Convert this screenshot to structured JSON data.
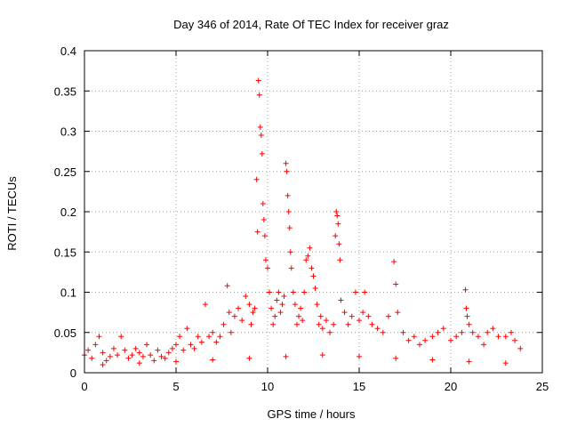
{
  "chart_data": {
    "type": "scatter",
    "title": "Day 346 of 2014, Rate Of TEC Index for receiver graz",
    "xlabel": "GPS time / hours",
    "ylabel": "ROTI / TECUs",
    "xlim": [
      0,
      25
    ],
    "ylim": [
      0,
      0.4
    ],
    "x_ticks": [
      0,
      5,
      10,
      15,
      20,
      25
    ],
    "x_tick_labels": [
      "0",
      "5",
      "10",
      "15",
      "20",
      "25"
    ],
    "y_ticks": [
      0,
      0.05,
      0.1,
      0.15,
      0.2,
      0.25,
      0.3,
      0.35,
      0.4
    ],
    "y_tick_labels": [
      "0",
      "0.05",
      "0.1",
      "0.15",
      "0.2",
      "0.25",
      "0.3",
      "0.35",
      "0.4"
    ],
    "grid": true,
    "marker": "+",
    "color": "#ff0000",
    "series": [
      {
        "name": "ROTI",
        "points": [
          [
            0.0,
            0.022
          ],
          [
            0.2,
            0.028
          ],
          [
            0.4,
            0.018
          ],
          [
            0.6,
            0.035
          ],
          [
            0.8,
            0.045
          ],
          [
            1.0,
            0.025
          ],
          [
            1.2,
            0.015
          ],
          [
            1.4,
            0.02
          ],
          [
            1.6,
            0.03
          ],
          [
            1.8,
            0.022
          ],
          [
            2.0,
            0.045
          ],
          [
            2.2,
            0.028
          ],
          [
            2.4,
            0.018
          ],
          [
            2.6,
            0.022
          ],
          [
            2.8,
            0.03
          ],
          [
            3.0,
            0.025
          ],
          [
            3.2,
            0.02
          ],
          [
            3.4,
            0.035
          ],
          [
            3.6,
            0.022
          ],
          [
            3.8,
            0.015
          ],
          [
            4.0,
            0.028
          ],
          [
            4.2,
            0.02
          ],
          [
            4.4,
            0.018
          ],
          [
            4.6,
            0.025
          ],
          [
            4.8,
            0.03
          ],
          [
            5.0,
            0.035
          ],
          [
            5.2,
            0.045
          ],
          [
            5.4,
            0.028
          ],
          [
            5.6,
            0.055
          ],
          [
            5.8,
            0.035
          ],
          [
            6.0,
            0.03
          ],
          [
            6.2,
            0.045
          ],
          [
            6.4,
            0.038
          ],
          [
            6.6,
            0.085
          ],
          [
            6.8,
            0.045
          ],
          [
            7.0,
            0.05
          ],
          [
            7.2,
            0.038
          ],
          [
            7.4,
            0.045
          ],
          [
            7.6,
            0.06
          ],
          [
            7.8,
            0.108
          ],
          [
            7.9,
            0.075
          ],
          [
            8.0,
            0.05
          ],
          [
            8.2,
            0.07
          ],
          [
            8.4,
            0.08
          ],
          [
            8.6,
            0.065
          ],
          [
            8.8,
            0.095
          ],
          [
            9.0,
            0.085
          ],
          [
            9.1,
            0.06
          ],
          [
            9.2,
            0.075
          ],
          [
            9.3,
            0.08
          ],
          [
            9.4,
            0.24
          ],
          [
            9.45,
            0.175
          ],
          [
            9.5,
            0.363
          ],
          [
            9.55,
            0.345
          ],
          [
            9.6,
            0.305
          ],
          [
            9.65,
            0.295
          ],
          [
            9.7,
            0.272
          ],
          [
            9.75,
            0.21
          ],
          [
            9.8,
            0.19
          ],
          [
            9.85,
            0.17
          ],
          [
            9.9,
            0.14
          ],
          [
            10.0,
            0.13
          ],
          [
            10.1,
            0.1
          ],
          [
            10.2,
            0.08
          ],
          [
            10.3,
            0.06
          ],
          [
            10.4,
            0.07
          ],
          [
            10.5,
            0.09
          ],
          [
            10.6,
            0.1
          ],
          [
            10.7,
            0.075
          ],
          [
            10.8,
            0.085
          ],
          [
            10.9,
            0.095
          ],
          [
            11.0,
            0.26
          ],
          [
            11.05,
            0.25
          ],
          [
            11.1,
            0.22
          ],
          [
            11.15,
            0.2
          ],
          [
            11.2,
            0.18
          ],
          [
            11.25,
            0.15
          ],
          [
            11.3,
            0.13
          ],
          [
            11.4,
            0.1
          ],
          [
            11.5,
            0.085
          ],
          [
            11.6,
            0.06
          ],
          [
            11.7,
            0.07
          ],
          [
            11.8,
            0.08
          ],
          [
            11.9,
            0.065
          ],
          [
            12.0,
            0.1
          ],
          [
            12.1,
            0.14
          ],
          [
            12.2,
            0.145
          ],
          [
            12.3,
            0.155
          ],
          [
            12.4,
            0.13
          ],
          [
            12.5,
            0.12
          ],
          [
            12.6,
            0.105
          ],
          [
            12.7,
            0.085
          ],
          [
            12.8,
            0.06
          ],
          [
            12.9,
            0.07
          ],
          [
            13.0,
            0.055
          ],
          [
            13.2,
            0.065
          ],
          [
            13.4,
            0.05
          ],
          [
            13.6,
            0.06
          ],
          [
            13.7,
            0.17
          ],
          [
            13.75,
            0.2
          ],
          [
            13.8,
            0.195
          ],
          [
            13.85,
            0.185
          ],
          [
            13.9,
            0.16
          ],
          [
            13.95,
            0.14
          ],
          [
            14.0,
            0.09
          ],
          [
            14.2,
            0.075
          ],
          [
            14.4,
            0.06
          ],
          [
            14.6,
            0.07
          ],
          [
            14.8,
            0.1
          ],
          [
            15.0,
            0.065
          ],
          [
            15.2,
            0.075
          ],
          [
            15.3,
            0.1
          ],
          [
            15.5,
            0.07
          ],
          [
            15.7,
            0.06
          ],
          [
            16.0,
            0.055
          ],
          [
            16.3,
            0.05
          ],
          [
            16.6,
            0.07
          ],
          [
            16.9,
            0.138
          ],
          [
            17.0,
            0.11
          ],
          [
            17.1,
            0.075
          ],
          [
            17.4,
            0.05
          ],
          [
            17.7,
            0.04
          ],
          [
            18.0,
            0.045
          ],
          [
            18.3,
            0.035
          ],
          [
            18.6,
            0.04
          ],
          [
            19.0,
            0.045
          ],
          [
            19.3,
            0.05
          ],
          [
            19.6,
            0.055
          ],
          [
            20.0,
            0.04
          ],
          [
            20.3,
            0.045
          ],
          [
            20.6,
            0.05
          ],
          [
            20.8,
            0.103
          ],
          [
            20.85,
            0.08
          ],
          [
            20.9,
            0.07
          ],
          [
            21.0,
            0.06
          ],
          [
            21.2,
            0.05
          ],
          [
            21.5,
            0.045
          ],
          [
            21.8,
            0.035
          ],
          [
            22.0,
            0.05
          ],
          [
            22.3,
            0.055
          ],
          [
            22.6,
            0.045
          ],
          [
            23.0,
            0.045
          ],
          [
            23.3,
            0.05
          ],
          [
            23.5,
            0.04
          ],
          [
            23.8,
            0.03
          ],
          [
            1.0,
            0.01
          ],
          [
            3.0,
            0.012
          ],
          [
            5.0,
            0.014
          ],
          [
            7.0,
            0.016
          ],
          [
            9.0,
            0.018
          ],
          [
            11.0,
            0.02
          ],
          [
            13.0,
            0.022
          ],
          [
            15.0,
            0.02
          ],
          [
            17.0,
            0.018
          ],
          [
            19.0,
            0.016
          ],
          [
            21.0,
            0.014
          ],
          [
            23.0,
            0.012
          ]
        ]
      }
    ]
  }
}
